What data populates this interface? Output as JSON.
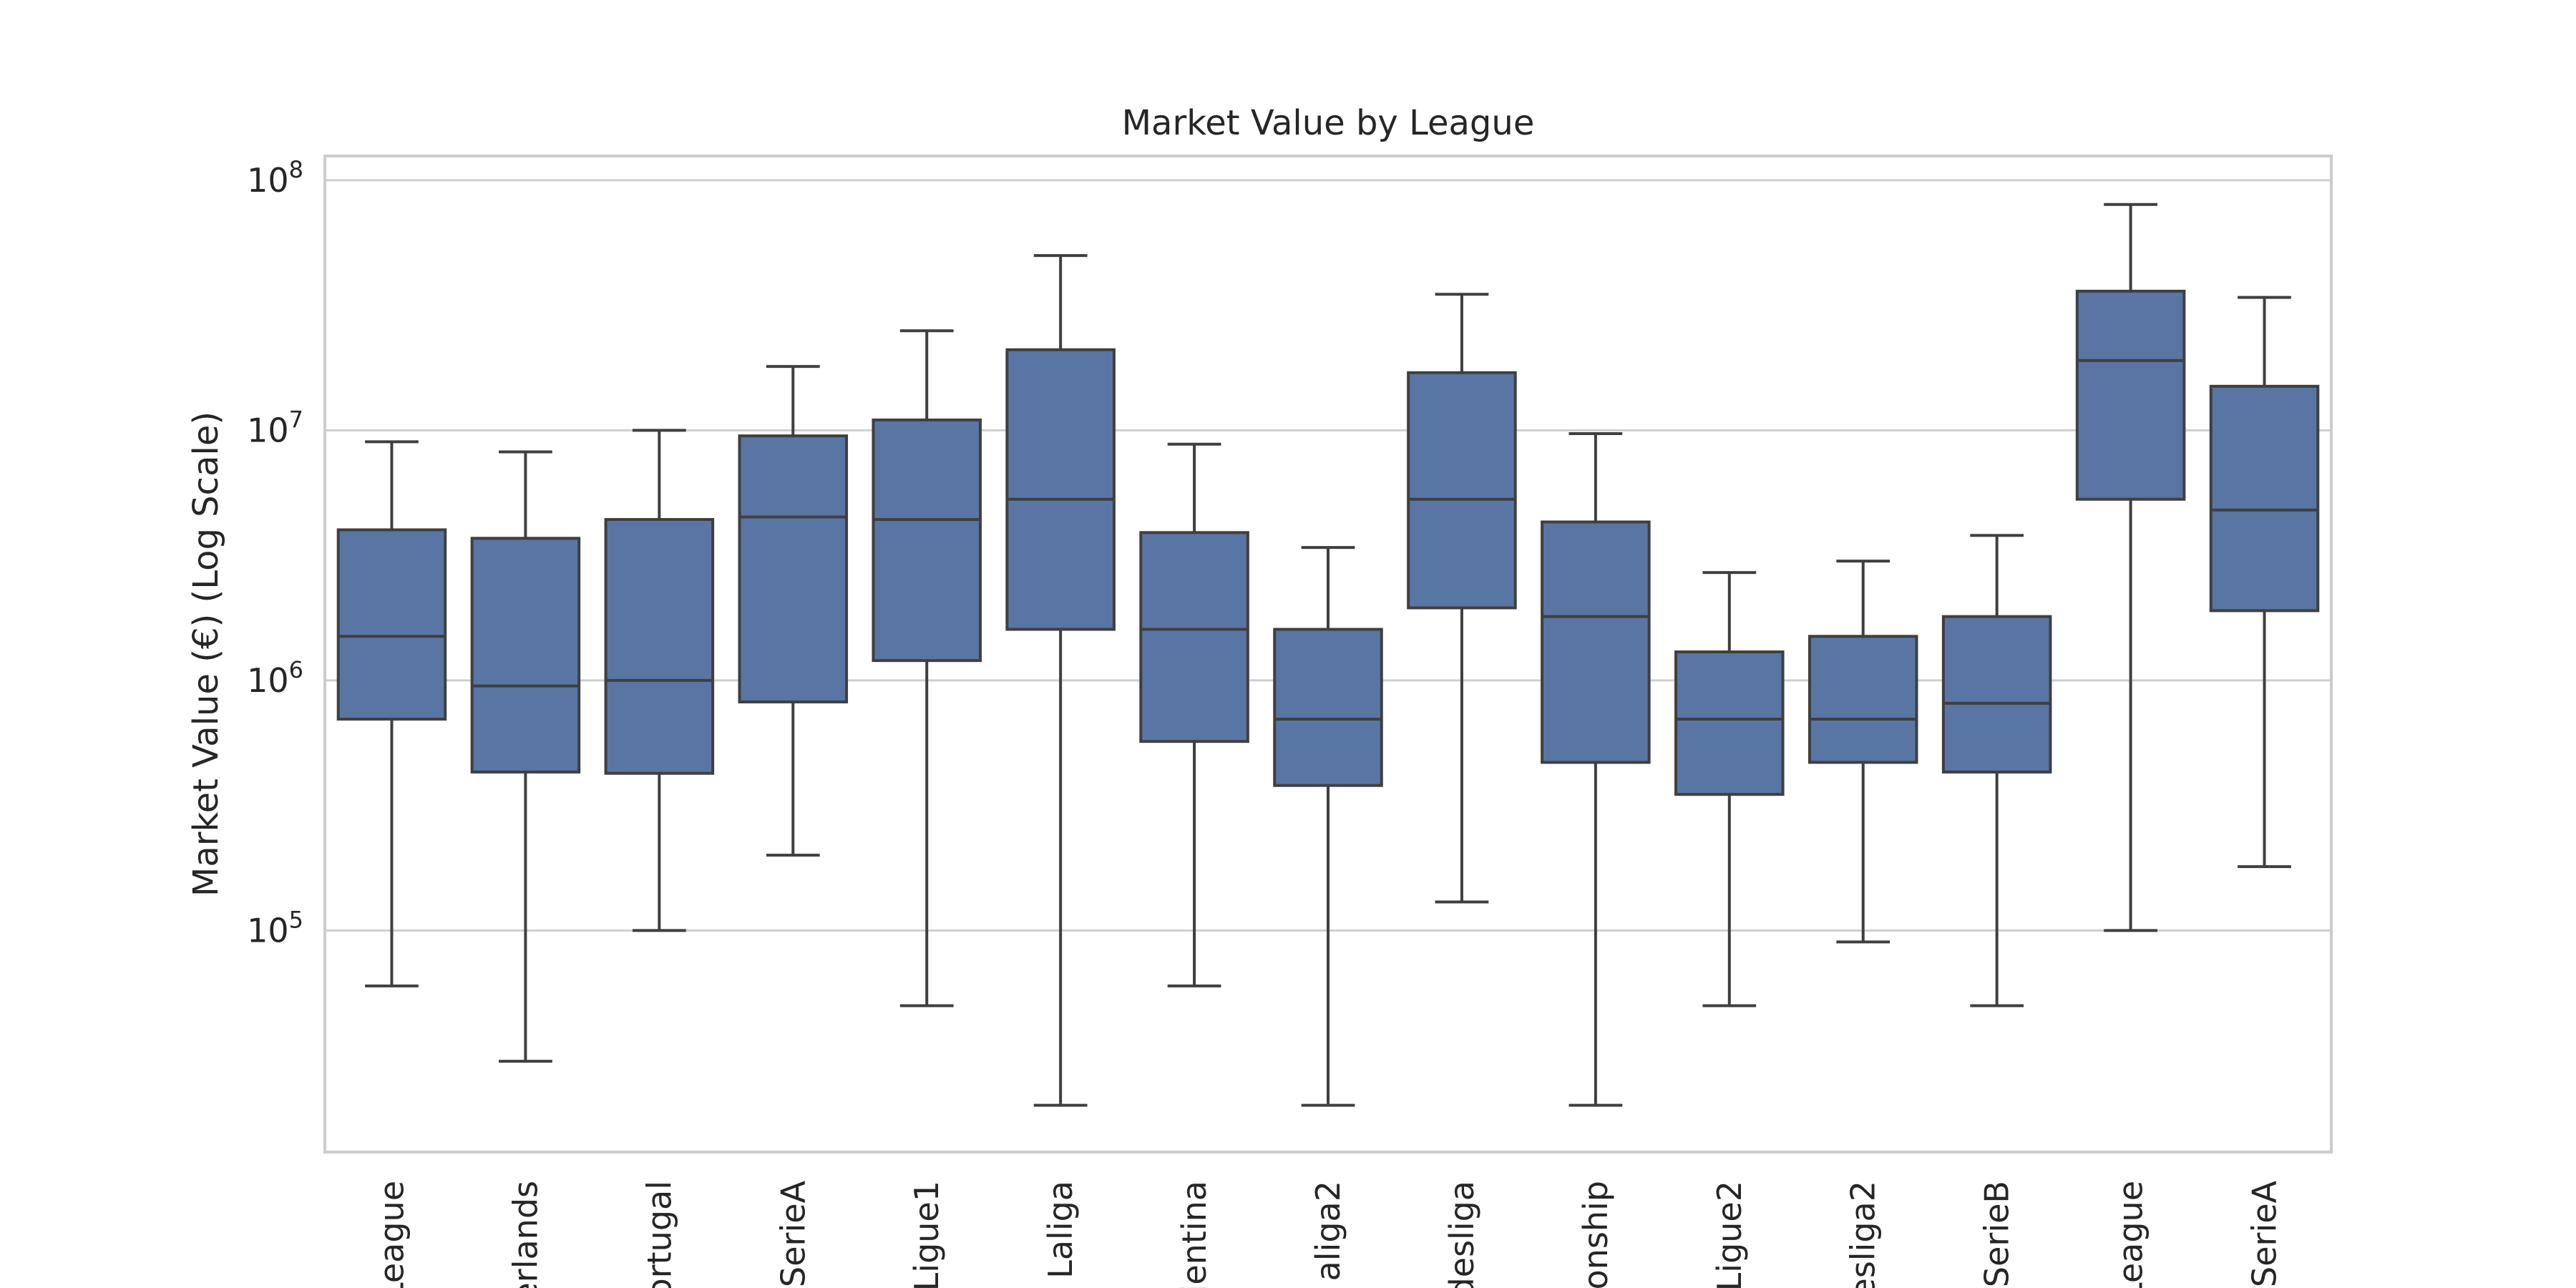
{
  "chart_data": {
    "type": "box",
    "title": "Market Value by League",
    "ylabel": "Market Value (€) (Log Scale)",
    "xlabel": "",
    "yscale": "log",
    "ylim": [
      13000,
      125000000
    ],
    "yticks": [
      {
        "value": 100000,
        "label": "10",
        "exp": "5"
      },
      {
        "value": 1000000,
        "label": "10",
        "exp": "6"
      },
      {
        "value": 10000000,
        "label": "10",
        "exp": "7"
      },
      {
        "value": 100000000,
        "label": "10",
        "exp": "8"
      }
    ],
    "grid": "horizontal",
    "color": "#5975a4",
    "categories": [
      "League",
      "erlands",
      "ortugal",
      "SerieA",
      "Ligue1",
      "Laliga",
      "jentina",
      "aliga2",
      "desliga",
      "onship",
      "Ligue2",
      "esliga2",
      "SerieB",
      "League",
      "SerieA"
    ],
    "boxes": [
      {
        "whisker_low": 60000,
        "q1": 700000,
        "median": 1500000,
        "q3": 4000000,
        "whisker_high": 9000000
      },
      {
        "whisker_low": 30000,
        "q1": 430000,
        "median": 950000,
        "q3": 3700000,
        "whisker_high": 8200000
      },
      {
        "whisker_low": 100000,
        "q1": 425000,
        "median": 1000000,
        "q3": 4400000,
        "whisker_high": 10000000
      },
      {
        "whisker_low": 200000,
        "q1": 820000,
        "median": 4500000,
        "q3": 9500000,
        "whisker_high": 18000000
      },
      {
        "whisker_low": 50000,
        "q1": 1200000,
        "median": 4400000,
        "q3": 11000000,
        "whisker_high": 25000000
      },
      {
        "whisker_low": 20000,
        "q1": 1600000,
        "median": 5300000,
        "q3": 21000000,
        "whisker_high": 50000000
      },
      {
        "whisker_low": 60000,
        "q1": 570000,
        "median": 1600000,
        "q3": 3900000,
        "whisker_high": 8800000
      },
      {
        "whisker_low": 20000,
        "q1": 380000,
        "median": 700000,
        "q3": 1600000,
        "whisker_high": 3400000
      },
      {
        "whisker_low": 130000,
        "q1": 1950000,
        "median": 5300000,
        "q3": 17000000,
        "whisker_high": 35000000
      },
      {
        "whisker_low": 20000,
        "q1": 470000,
        "median": 1800000,
        "q3": 4300000,
        "whisker_high": 9700000
      },
      {
        "whisker_low": 50000,
        "q1": 350000,
        "median": 700000,
        "q3": 1300000,
        "whisker_high": 2700000
      },
      {
        "whisker_low": 90000,
        "q1": 470000,
        "median": 700000,
        "q3": 1500000,
        "whisker_high": 3000000
      },
      {
        "whisker_low": 50000,
        "q1": 430000,
        "median": 810000,
        "q3": 1800000,
        "whisker_high": 3800000
      },
      {
        "whisker_low": 100000,
        "q1": 5300000,
        "median": 19000000,
        "q3": 36000000,
        "whisker_high": 80000000
      },
      {
        "whisker_low": 180000,
        "q1": 1900000,
        "median": 4800000,
        "q3": 15000000,
        "whisker_high": 34000000
      }
    ]
  }
}
